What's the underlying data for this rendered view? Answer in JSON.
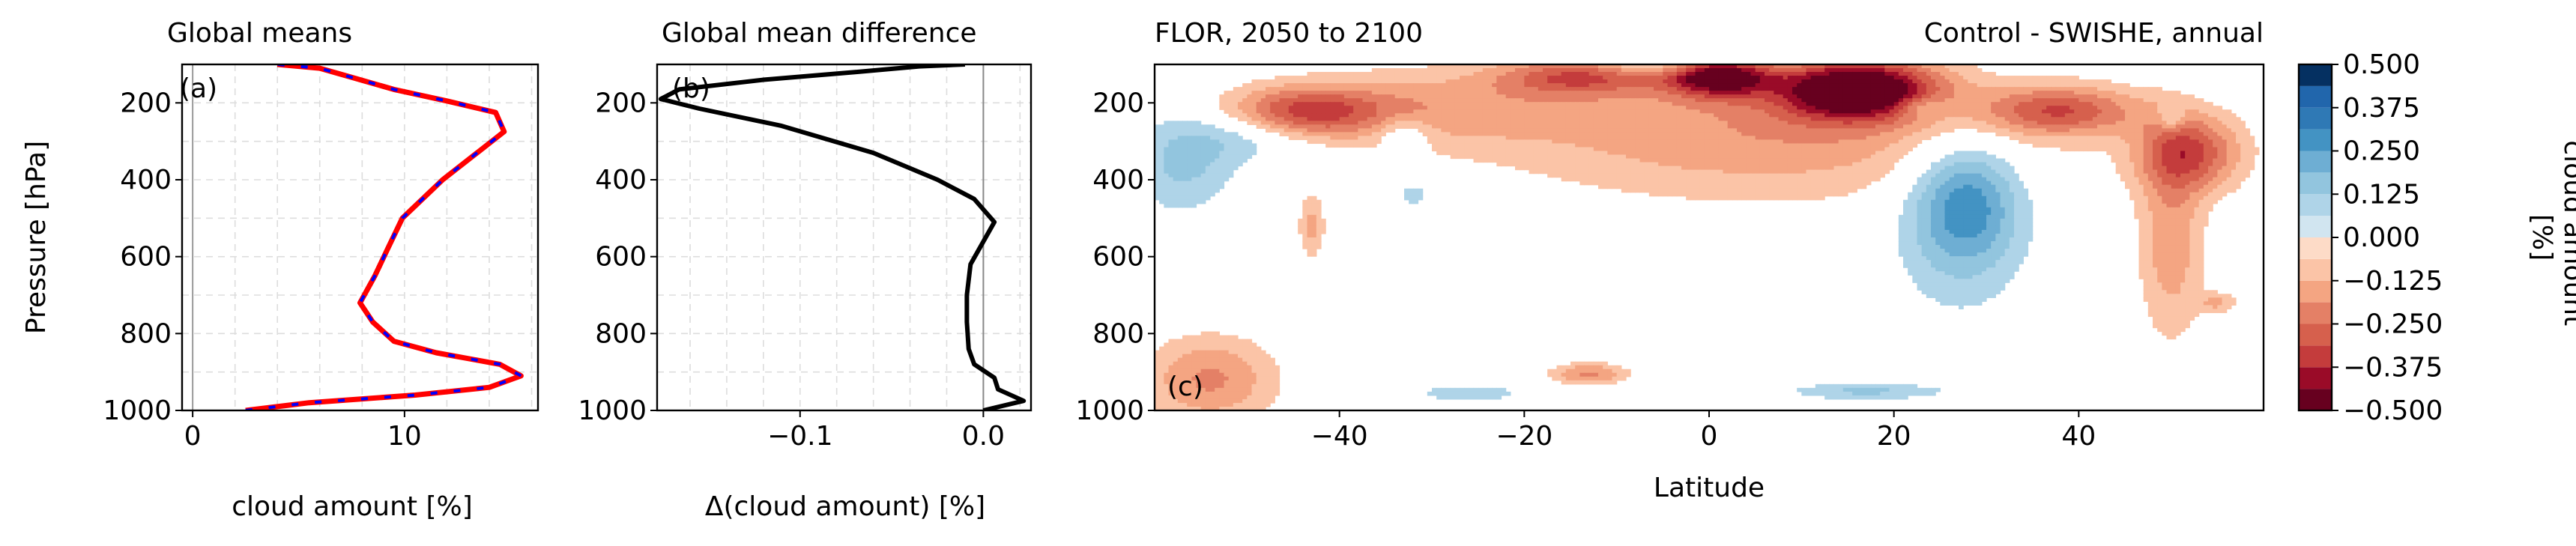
{
  "chart_data": [
    {
      "type": "line",
      "panel_label": "(a)",
      "title": "Global means",
      "xlabel": "cloud amount [%]",
      "ylabel": "Pressure [hPa]",
      "xlim": [
        -0.5,
        16.3
      ],
      "ylim": [
        1000,
        100
      ],
      "x_ticks": [
        0,
        10
      ],
      "y_ticks": [
        200,
        400,
        600,
        800,
        1000
      ],
      "grid": true,
      "series": [
        {
          "line_style": "solid red with blue dashes overlaid",
          "color": "#ff0000",
          "overlay_color": "#0000ff",
          "x": [
            2.5,
            5.5,
            10.5,
            14.0,
            15.5,
            14.5,
            11.5,
            9.5,
            8.5,
            7.9,
            8.6,
            9.2,
            9.9,
            11.8,
            14.7,
            14.3,
            12.0,
            9.5,
            7.6,
            6.0,
            4.0
          ],
          "y": [
            1000,
            980,
            960,
            940,
            910,
            880,
            850,
            820,
            770,
            720,
            650,
            580,
            500,
            400,
            275,
            225,
            195,
            165,
            135,
            110,
            100
          ]
        }
      ]
    },
    {
      "type": "line",
      "panel_label": "(b)",
      "title": "Global mean difference",
      "xlabel": "Δ(cloud amount) [%]",
      "xlim": [
        -0.178,
        0.026
      ],
      "ylim": [
        1000,
        100
      ],
      "x_ticks": [
        -0.1,
        0.0
      ],
      "x_tick_labels": [
        "−0.1",
        "0.0"
      ],
      "y_ticks": [
        200,
        400,
        600,
        800,
        1000
      ],
      "grid": true,
      "zero_line": true,
      "series": [
        {
          "color": "#000000",
          "x": [
            0.0,
            0.022,
            0.008,
            0.006,
            -0.005,
            -0.008,
            -0.009,
            -0.009,
            -0.007,
            0.006,
            -0.005,
            -0.025,
            -0.06,
            -0.11,
            -0.155,
            -0.176,
            -0.166,
            -0.12,
            -0.07,
            -0.035,
            -0.01
          ],
          "y": [
            1000,
            975,
            945,
            915,
            880,
            840,
            770,
            700,
            620,
            510,
            450,
            400,
            330,
            260,
            215,
            190,
            165,
            140,
            120,
            105,
            100
          ]
        }
      ]
    },
    {
      "type": "heatmap",
      "panel_label": "(c)",
      "title_left": "FLOR, 2050 to 2100",
      "title_right": "Control - SWISHE, annual",
      "xlabel": "Latitude",
      "xlim": [
        -60,
        60
      ],
      "ylim": [
        1000,
        100
      ],
      "x_ticks": [
        -40,
        -20,
        0,
        20,
        40
      ],
      "x_tick_labels": [
        "−40",
        "−20",
        "0",
        "20",
        "40"
      ],
      "y_ticks": [
        200,
        400,
        600,
        800,
        1000
      ],
      "blobs": [
        {
          "lat": 16,
          "p": 165,
          "slat": 6,
          "sp": 55,
          "amp": -0.55
        },
        {
          "lat": 1,
          "p": 125,
          "slat": 4,
          "sp": 40,
          "amp": -0.5
        },
        {
          "lat": -14,
          "p": 130,
          "slat": 6,
          "sp": 35,
          "amp": -0.27
        },
        {
          "lat": 38,
          "p": 220,
          "slat": 6,
          "sp": 45,
          "amp": -0.28
        },
        {
          "lat": -44,
          "p": 225,
          "slat": 6,
          "sp": 45,
          "amp": -0.3
        },
        {
          "lat": 52,
          "p": 330,
          "slat": 4,
          "sp": 70,
          "amp": -0.3
        },
        {
          "lat": 50,
          "p": 560,
          "slat": 2.5,
          "sp": 180,
          "amp": -0.17
        },
        {
          "lat": 6,
          "p": 280,
          "slat": 20,
          "sp": 120,
          "amp": -0.18
        },
        {
          "lat": -30,
          "p": 210,
          "slat": 12,
          "sp": 70,
          "amp": -0.14
        },
        {
          "lat": -54,
          "p": 920,
          "slat": 5,
          "sp": 80,
          "amp": -0.2
        },
        {
          "lat": -13,
          "p": 905,
          "slat": 3,
          "sp": 20,
          "amp": -0.2
        },
        {
          "lat": -43,
          "p": 520,
          "slat": 1,
          "sp": 60,
          "amp": -0.14
        },
        {
          "lat": 55,
          "p": 720,
          "slat": 1.5,
          "sp": 20,
          "amp": -0.13
        },
        {
          "lat": 28,
          "p": 450,
          "slat": 4,
          "sp": 110,
          "amp": 0.22
        },
        {
          "lat": 27,
          "p": 530,
          "slat": 5,
          "sp": 160,
          "amp": 0.12
        },
        {
          "lat": -57,
          "p": 360,
          "slat": 4,
          "sp": 90,
          "amp": 0.14
        },
        {
          "lat": -50,
          "p": 280,
          "slat": 5,
          "sp": 50,
          "amp": 0.12
        },
        {
          "lat": -3,
          "p": 100,
          "slat": 7,
          "sp": 20,
          "amp": 0.16
        },
        {
          "lat": 23,
          "p": 210,
          "slat": 2,
          "sp": 20,
          "amp": 0.12
        },
        {
          "lat": -33,
          "p": 280,
          "slat": 2,
          "sp": 30,
          "amp": 0.12
        },
        {
          "lat": -32,
          "p": 440,
          "slat": 1,
          "sp": 20,
          "amp": 0.13
        },
        {
          "lat": 17,
          "p": 950,
          "slat": 6,
          "sp": 15,
          "amp": 0.14
        },
        {
          "lat": -26,
          "p": 955,
          "slat": 4,
          "sp": 15,
          "amp": 0.12
        },
        {
          "lat": 50,
          "p": 240,
          "slat": 1,
          "sp": 20,
          "amp": 0.13
        }
      ]
    }
  ],
  "colorbar": {
    "label": "cloud amount\n[%]",
    "label_line1": "cloud amount",
    "label_line2": "[%]",
    "levels": [
      -0.5,
      -0.4375,
      -0.375,
      -0.3125,
      -0.25,
      -0.1875,
      -0.125,
      -0.0625,
      0.0,
      0.0625,
      0.125,
      0.1875,
      0.25,
      0.3125,
      0.375,
      0.4375,
      0.5
    ],
    "colors": [
      "#67001f",
      "#9a0b28",
      "#c43c3c",
      "#d6604d",
      "#e48066",
      "#f4a582",
      "#fbc4a7",
      "#fddbc7",
      "#ffffff",
      "#d1e5f0",
      "#afd4e8",
      "#92c5de",
      "#6eaed3",
      "#4393c3",
      "#2f79b5",
      "#2166ac",
      "#053061"
    ],
    "tick_values": [
      0.5,
      0.375,
      0.25,
      0.125,
      0.0,
      -0.125,
      -0.25,
      -0.375,
      -0.5
    ],
    "tick_labels": [
      "0.500",
      "0.375",
      "0.250",
      "0.125",
      "0.000",
      "−0.125",
      "−0.250",
      "−0.375",
      "−0.500"
    ]
  }
}
